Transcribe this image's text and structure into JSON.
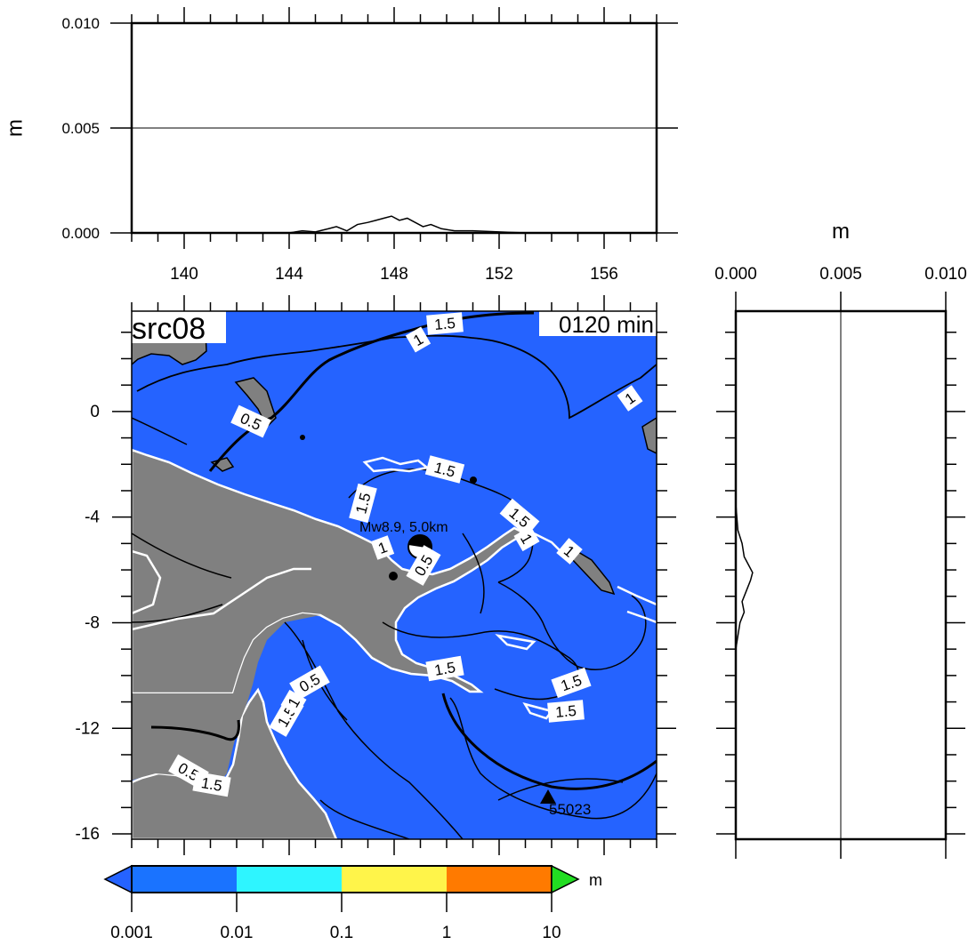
{
  "chart_data": [
    {
      "id": "top_profile",
      "type": "line",
      "xlim": [
        138,
        158
      ],
      "ylim": [
        0.0,
        0.01
      ],
      "ylabel": "m",
      "x_ticks": [
        140,
        144,
        148,
        152,
        156
      ],
      "y_ticks": [
        "0.000",
        "0.005",
        "0.010"
      ],
      "y_tick_values": [
        0.0,
        0.005,
        0.01
      ],
      "grid_y": [
        0.005
      ],
      "series": [
        {
          "x": [
            144.0,
            144.5,
            145.0,
            145.5,
            145.8,
            146.2,
            146.6,
            147.0,
            147.3,
            147.6,
            147.9,
            148.2,
            148.5,
            148.8,
            149.1,
            149.4,
            149.8,
            150.3,
            151.0,
            152.0,
            153.0
          ],
          "values": [
            0.0,
            0.0001,
            5e-05,
            0.0002,
            0.0003,
            0.0001,
            0.0004,
            0.0005,
            0.0006,
            0.0007,
            0.0008,
            0.0006,
            0.0007,
            0.0005,
            0.0003,
            0.0004,
            0.0002,
            0.0001,
            0.0001,
            5e-05,
            0.0
          ]
        }
      ]
    },
    {
      "id": "right_profile",
      "type": "line",
      "xlim": [
        0.0,
        0.01
      ],
      "ylim": [
        -16.2,
        3.8
      ],
      "xlabel": "m",
      "x_ticks": [
        "0.000",
        "0.005",
        "0.010"
      ],
      "x_tick_values": [
        0.0,
        0.005,
        0.01
      ],
      "grid_x": [
        0.005
      ],
      "series": [
        {
          "y": [
            -3.5,
            -4.0,
            -4.5,
            -5.0,
            -5.5,
            -5.8,
            -6.1,
            -6.4,
            -6.8,
            -7.2,
            -7.6,
            -8.0,
            -8.5,
            -9.0
          ],
          "values": [
            0.0,
            5e-05,
            0.0001,
            0.0003,
            0.0004,
            0.0006,
            0.0008,
            0.0007,
            0.0005,
            0.0003,
            0.0004,
            0.0002,
            0.0001,
            0.0
          ]
        }
      ]
    },
    {
      "id": "map",
      "type": "heatmap",
      "title": "src08",
      "time_label": "0120 min",
      "xlim": [
        138,
        158
      ],
      "ylim": [
        -16.2,
        3.8
      ],
      "y_ticks": [
        0,
        -4,
        -8,
        -12,
        -16
      ],
      "epicenter_label": "Mw8.9, 5.0km",
      "station_label": "55023",
      "contour_labels": [
        "1",
        "1.5",
        "1",
        "0.5",
        "1.5",
        "1.5",
        "1.5",
        "1",
        "1",
        "1",
        "0.5",
        "1.5",
        "1.5",
        "1.5",
        "0.5",
        "1.5",
        "1",
        "0.5",
        "1.5"
      ],
      "colors": {
        "ocean": "#2563ff",
        "land": "#808080"
      }
    },
    {
      "id": "colorbar",
      "type": "colorbar",
      "unit": "m",
      "tick_labels": [
        "0.001",
        "0.01",
        "0.1",
        "1",
        "10"
      ],
      "tick_values": [
        0.001,
        0.01,
        0.1,
        1,
        10
      ],
      "colors": [
        "#1a73ff",
        "#2ef5ff",
        "#fff44a",
        "#ff9400",
        "#e80000",
        "#22dd22",
        "#2563ff"
      ]
    }
  ]
}
